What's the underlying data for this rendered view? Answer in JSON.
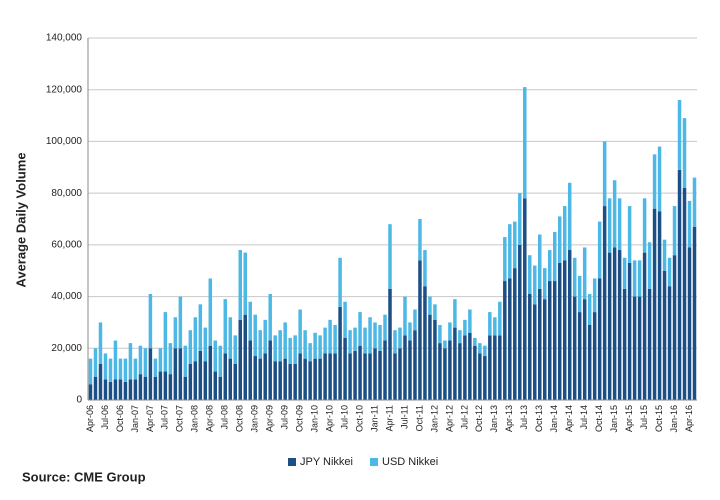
{
  "chart_data": {
    "type": "stacked_bar",
    "y_label": "Average Daily Volume",
    "source": "Source: CME Group",
    "categories": [
      "Apr-06",
      null,
      null,
      "Jul-06",
      null,
      null,
      "Oct-06",
      null,
      null,
      "Jan-07",
      null,
      null,
      "Apr-07",
      null,
      null,
      "Jul-07",
      null,
      null,
      "Oct-07",
      null,
      null,
      "Jan-08",
      null,
      null,
      "Apr-08",
      null,
      null,
      "Jul-08",
      null,
      null,
      "Oct-08",
      null,
      null,
      "Jan-09",
      null,
      null,
      "Apr-09",
      null,
      null,
      "Jul-09",
      null,
      null,
      "Oct-09",
      null,
      null,
      "Jan-10",
      null,
      null,
      "Apr-10",
      null,
      null,
      "Jul-10",
      null,
      null,
      "Oct-10",
      null,
      null,
      "Jan-11",
      null,
      null,
      "Apr-11",
      null,
      null,
      "Jul-11",
      null,
      null,
      "Oct-11",
      null,
      null,
      "Jan-12",
      null,
      null,
      "Apr-12",
      null,
      null,
      "Jul-12",
      null,
      null,
      "Oct-12",
      null,
      null,
      "Jan-13",
      null,
      null,
      "Apr-13",
      null,
      null,
      "Jul-13",
      null,
      null,
      "Oct-13",
      null,
      null,
      "Jan-14",
      null,
      null,
      "Apr-14",
      null,
      null,
      "Jul-14",
      null,
      null,
      "Oct-14",
      null,
      null,
      "Jan-15",
      null,
      null,
      "Apr-15",
      null,
      null,
      "Jul-15",
      null,
      null,
      "Oct-15",
      null,
      null,
      "Jan-16",
      null,
      null,
      "Apr-16",
      null
    ],
    "series": [
      {
        "name": "JPY Nikkei",
        "color": "#1c4f86",
        "values": [
          6000,
          9000,
          14000,
          8000,
          7000,
          8000,
          8000,
          7000,
          8000,
          8000,
          10000,
          9000,
          20000,
          9000,
          11000,
          11000,
          10000,
          20000,
          20000,
          9000,
          14000,
          15000,
          19000,
          15000,
          21000,
          11000,
          9000,
          18000,
          16000,
          14000,
          31000,
          33000,
          23000,
          17000,
          16000,
          18000,
          23000,
          15000,
          15000,
          16000,
          14000,
          14000,
          18000,
          16000,
          15000,
          16000,
          16000,
          18000,
          18000,
          18000,
          36000,
          24000,
          18000,
          19000,
          21000,
          18000,
          18000,
          20000,
          19000,
          23000,
          43000,
          18000,
          20000,
          25000,
          23000,
          27000,
          54000,
          44000,
          33000,
          31000,
          22000,
          20000,
          23000,
          28000,
          22000,
          25000,
          26000,
          21000,
          18000,
          17000,
          25000,
          25000,
          25000,
          46000,
          47000,
          51000,
          60000,
          78000,
          41000,
          37000,
          43000,
          39000,
          46000,
          46000,
          53000,
          54000,
          58000,
          40000,
          34000,
          39000,
          29000,
          34000,
          47000,
          75000,
          57000,
          59000,
          58000,
          43000,
          53000,
          40000,
          40000,
          57000,
          43000,
          74000,
          73000,
          50000,
          44000,
          56000,
          89000,
          82000,
          59000,
          67000
        ]
      },
      {
        "name": "USD Nikkei",
        "color": "#4db8e5",
        "values": [
          10000,
          11000,
          16000,
          10000,
          9000,
          15000,
          8000,
          9000,
          14000,
          8000,
          11000,
          11000,
          21000,
          7000,
          9000,
          23000,
          12000,
          12000,
          20000,
          12000,
          13000,
          17000,
          18000,
          13000,
          26000,
          12000,
          12000,
          21000,
          16000,
          11000,
          27000,
          24000,
          15000,
          16000,
          11000,
          13000,
          18000,
          10000,
          12000,
          14000,
          10000,
          11000,
          17000,
          11000,
          7000,
          10000,
          9000,
          10000,
          13000,
          11000,
          19000,
          14000,
          9000,
          9000,
          13000,
          10000,
          14000,
          10000,
          10000,
          10000,
          25000,
          9000,
          8000,
          15000,
          7000,
          8000,
          16000,
          14000,
          7000,
          6000,
          7000,
          3000,
          7000,
          11000,
          5000,
          6000,
          9000,
          3000,
          4000,
          4000,
          9000,
          7000,
          13000,
          17000,
          21000,
          18000,
          20000,
          43000,
          15000,
          15000,
          21000,
          12000,
          12000,
          19000,
          18000,
          21000,
          26000,
          15000,
          14000,
          20000,
          12000,
          13000,
          22000,
          25000,
          21000,
          26000,
          20000,
          12000,
          22000,
          14000,
          14000,
          21000,
          18000,
          21000,
          25000,
          12000,
          11000,
          19000,
          27000,
          27000,
          18000,
          19000
        ]
      }
    ],
    "ylim": [
      0,
      140000
    ],
    "yticks": [
      0,
      {
        "value": 20000,
        "label": "20,000"
      },
      {
        "value": 40000,
        "label": "40,000"
      },
      {
        "value": 60000,
        "label": "60,000"
      },
      {
        "value": 80000,
        "label": "80,000"
      },
      {
        "value": 100000,
        "label": "100,000"
      },
      {
        "value": 120000,
        "label": "120,000"
      },
      {
        "value": 140000,
        "label": "140,000"
      }
    ],
    "grid": true,
    "legend": "bottom"
  }
}
